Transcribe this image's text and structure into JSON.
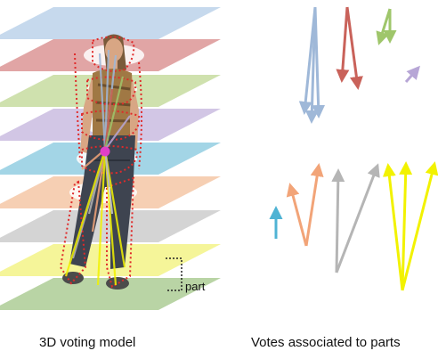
{
  "captions": {
    "left": "3D voting model",
    "right": "Votes associated to parts"
  },
  "annotation": {
    "part_label": "part"
  },
  "slice_colors": [
    "#b8cfe8",
    "#d98e8e",
    "#c3d99a",
    "#c7b8df",
    "#8ccbe0",
    "#f4c3a0",
    "#c9c9c9",
    "#f2f280",
    "#a8c98e"
  ],
  "vote_colors": {
    "blue": "#9fb8d8",
    "red": "#c9625a",
    "green": "#9fc66b",
    "purple": "#b7a6d6",
    "cyan": "#4fb3d4",
    "orange": "#f2a478",
    "gray": "#b5b5b5",
    "yellow": "#f2f200",
    "magenta": "#e040c8",
    "contour": "#e02a2a"
  },
  "icons": [
    "person-figure-icon",
    "vote-arrow-icon",
    "bracket-icon"
  ]
}
